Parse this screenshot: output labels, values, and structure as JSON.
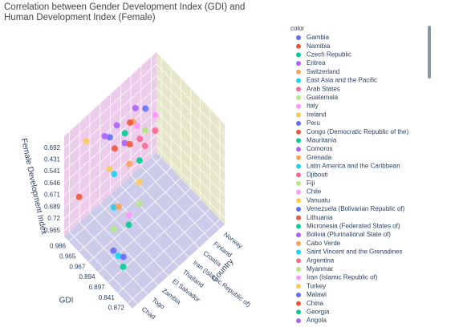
{
  "chart_data": {
    "type": "scatter3d",
    "title": "Correlation between Gender Development Index (GDI) and Human Development Index (Female)",
    "legend_title": "color",
    "xlabel": "Country",
    "ylabel": "GDI",
    "zlabel": "Female Development Index",
    "xlim": [
      -0.5,
      8.5
    ],
    "ylim": [
      -0.5,
      6.5
    ],
    "zlim": [
      -0.5,
      8
    ],
    "xticks": [
      {
        "value": 0,
        "label": "Chad"
      },
      {
        "value": 1,
        "label": "Togo"
      },
      {
        "value": 2,
        "label": "Zambia"
      },
      {
        "value": 3,
        "label": "El Salvador"
      },
      {
        "value": 4,
        "label": "Thailand"
      },
      {
        "value": 5,
        "label": "Iran (Islamic Republic of)"
      },
      {
        "value": 6,
        "label": "Croatia"
      },
      {
        "value": 7,
        "label": "Finland"
      },
      {
        "value": 8,
        "label": "Norway"
      }
    ],
    "yticks": [
      {
        "value": 0,
        "label": "0.986"
      },
      {
        "value": 1,
        "label": "0.965"
      },
      {
        "value": 2,
        "label": "0.967"
      },
      {
        "value": 3,
        "label": "0.894"
      },
      {
        "value": 4,
        "label": "0.897"
      },
      {
        "value": 5,
        "label": "0.841"
      },
      {
        "value": 6,
        "label": "0.872"
      }
    ],
    "zticks": [
      {
        "value": 0,
        "label": "0.965"
      },
      {
        "value": 1,
        "label": "0.72"
      },
      {
        "value": 2,
        "label": "0.689"
      },
      {
        "value": 3,
        "label": "0.671"
      },
      {
        "value": 4,
        "label": "0.646"
      },
      {
        "value": 5,
        "label": "0.541"
      },
      {
        "value": 6,
        "label": "0.431"
      },
      {
        "value": 7,
        "label": "0.692"
      }
    ],
    "series": [
      {
        "name": "Gambia",
        "color": "#636efa",
        "x": [
          3
        ],
        "y": [
          0.5
        ],
        "z": [
          6
        ]
      },
      {
        "name": "Namibia",
        "color": "#EF553B",
        "x": [
          0.2
        ],
        "y": [
          0.3
        ],
        "z": [
          3
        ]
      },
      {
        "name": "Czech Republic",
        "color": "#00cc96",
        "x": [
          4
        ],
        "y": [
          1
        ],
        "z": [
          6
        ]
      },
      {
        "name": "Eritrea",
        "color": "#ab63fa",
        "x": [
          3.5
        ],
        "y": [
          1.5
        ],
        "z": [
          6
        ]
      },
      {
        "name": "Switzerland",
        "color": "#FFA15A",
        "x": [
          5
        ],
        "y": [
          0.8
        ],
        "z": [
          6
        ]
      },
      {
        "name": "East Asia and the Pacific",
        "color": "#19d3f3",
        "x": [
          2
        ],
        "y": [
          2
        ],
        "z": [
          5
        ]
      },
      {
        "name": "Arab States",
        "color": "#FF6692",
        "x": [
          4.5
        ],
        "y": [
          2
        ],
        "z": [
          6
        ]
      },
      {
        "name": "Guatemala",
        "color": "#B6E880",
        "x": [
          5.5
        ],
        "y": [
          1.5
        ],
        "z": [
          5.5
        ]
      },
      {
        "name": "Italy",
        "color": "#FF97FF",
        "x": [
          2.5
        ],
        "y": [
          3
        ],
        "z": [
          2
        ]
      },
      {
        "name": "Ireland",
        "color": "#FECB52",
        "x": [
          1
        ],
        "y": [
          0.2
        ],
        "z": [
          7
        ]
      },
      {
        "name": "Peru",
        "color": "#636efa",
        "x": [
          6
        ],
        "y": [
          1
        ],
        "z": [
          6.5
        ]
      },
      {
        "name": "Congo (Democratic Republic of the)",
        "color": "#EF553B",
        "x": [
          3
        ],
        "y": [
          1
        ],
        "z": [
          5.5
        ]
      },
      {
        "name": "Mauritania",
        "color": "#00cc96",
        "x": [
          4
        ],
        "y": [
          2.5
        ],
        "z": [
          5
        ]
      },
      {
        "name": "Comoros",
        "color": "#ab63fa",
        "x": [
          2.5
        ],
        "y": [
          0.5
        ],
        "z": [
          6.5
        ]
      },
      {
        "name": "Grenada",
        "color": "#FFA15A",
        "x": [
          3
        ],
        "y": [
          2.5
        ],
        "z": [
          5.5
        ]
      },
      {
        "name": "Latin America and the Caribbean",
        "color": "#19d3f3",
        "x": [
          1.5
        ],
        "y": [
          2.5
        ],
        "z": [
          3
        ]
      },
      {
        "name": "Djibouti",
        "color": "#FF6692",
        "x": [
          5
        ],
        "y": [
          2
        ],
        "z": [
          5
        ]
      },
      {
        "name": "Fiji",
        "color": "#B6E880",
        "x": [
          1
        ],
        "y": [
          3
        ],
        "z": [
          2
        ]
      },
      {
        "name": "Chile",
        "color": "#FF97FF",
        "x": [
          6.5
        ],
        "y": [
          1.5
        ],
        "z": [
          6
        ]
      },
      {
        "name": "Vanuatu",
        "color": "#FECB52",
        "x": [
          3.5
        ],
        "y": [
          3
        ],
        "z": [
          4
        ]
      },
      {
        "name": "Venezuela (Bolivarian Republic of)",
        "color": "#636efa",
        "x": [
          0.5
        ],
        "y": [
          3.5
        ],
        "z": [
          1
        ]
      },
      {
        "name": "Lithuania",
        "color": "#EF553B",
        "x": [
          4
        ],
        "y": [
          1.5
        ],
        "z": [
          5.5
        ]
      },
      {
        "name": "Micronesia (Federated States of)",
        "color": "#00cc96",
        "x": [
          2
        ],
        "y": [
          3.5
        ],
        "z": [
          2
        ]
      },
      {
        "name": "Bolivia (Plurinational State of)",
        "color": "#ab63fa",
        "x": [
          5.5
        ],
        "y": [
          0.5
        ],
        "z": [
          6.5
        ]
      },
      {
        "name": "Cabo Verde",
        "color": "#FFA15A",
        "x": [
          1.5
        ],
        "y": [
          3
        ],
        "z": [
          3.5
        ]
      },
      {
        "name": "Saint Vincent and the Grenadines",
        "color": "#19d3f3",
        "x": [
          0.5
        ],
        "y": [
          4
        ],
        "z": [
          1
        ]
      },
      {
        "name": "Argentina",
        "color": "#FF6692",
        "x": [
          6
        ],
        "y": [
          2
        ],
        "z": [
          5.5
        ]
      },
      {
        "name": "Myanmar",
        "color": "#B6E880",
        "x": [
          3
        ],
        "y": [
          3.5
        ],
        "z": [
          3
        ]
      },
      {
        "name": "Iran (Islamic Republic of)",
        "color": "#FF97FF",
        "x": [
          5
        ],
        "y": [
          1.2
        ],
        "z": [
          6
        ]
      },
      {
        "name": "Turkey",
        "color": "#FECB52",
        "x": [
          2
        ],
        "y": [
          1.5
        ],
        "z": [
          5
        ]
      },
      {
        "name": "Malawi",
        "color": "#636efa",
        "x": [
          1
        ],
        "y": [
          4
        ],
        "z": [
          0.5
        ]
      },
      {
        "name": "China",
        "color": "#EF553B",
        "x": [
          4.5
        ],
        "y": [
          1
        ],
        "z": [
          6.5
        ]
      },
      {
        "name": "Georgia",
        "color": "#00cc96",
        "x": [
          0.5
        ],
        "y": [
          4.5
        ],
        "z": [
          0.5
        ]
      },
      {
        "name": "Angola",
        "color": "#ab63fa",
        "x": [
          3.5
        ],
        "y": [
          0.7
        ],
        "z": [
          6.8
        ]
      }
    ]
  }
}
